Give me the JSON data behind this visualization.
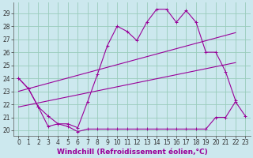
{
  "background_color": "#cce8ee",
  "grid_color": "#99ccbb",
  "line_color": "#990099",
  "xlabel": "Windchill (Refroidissement éolien,°C)",
  "xlabel_fontsize": 6.5,
  "tick_fontsize": 5.5,
  "xlim": [
    -0.5,
    23.5
  ],
  "ylim": [
    19.6,
    29.8
  ],
  "yticks": [
    20,
    21,
    22,
    23,
    24,
    25,
    26,
    27,
    28,
    29
  ],
  "xticks": [
    0,
    1,
    2,
    3,
    4,
    5,
    6,
    7,
    8,
    9,
    10,
    11,
    12,
    13,
    14,
    15,
    16,
    17,
    18,
    19,
    20,
    21,
    22,
    23
  ],
  "line1_x": [
    0,
    1,
    2,
    3,
    4,
    5,
    6,
    7,
    8,
    9,
    10,
    11,
    12,
    13,
    14,
    15,
    16,
    17,
    18,
    19,
    20,
    21,
    22,
    23
  ],
  "line1_y": [
    24.0,
    23.2,
    21.8,
    20.3,
    20.5,
    20.3,
    19.9,
    20.1,
    20.1,
    20.1,
    20.1,
    20.1,
    20.1,
    20.1,
    20.1,
    20.1,
    20.1,
    20.1,
    20.1,
    20.1,
    21.0,
    21.0,
    22.2,
    21.1
  ],
  "line2_x": [
    0,
    1,
    2,
    3,
    4,
    5,
    6,
    7,
    8,
    9,
    10,
    11,
    12,
    13,
    14,
    15,
    16,
    17,
    18,
    19,
    20,
    21,
    22
  ],
  "line2_y": [
    24.0,
    23.2,
    21.8,
    21.1,
    20.5,
    20.5,
    20.2,
    22.2,
    24.3,
    26.5,
    28.0,
    27.6,
    26.9,
    28.3,
    29.3,
    29.3,
    28.3,
    29.2,
    28.3,
    26.0,
    26.0,
    24.5,
    22.3
  ],
  "line3_x": [
    0,
    22
  ],
  "line3_y": [
    23.0,
    27.5
  ],
  "line4_x": [
    0,
    22
  ],
  "line4_y": [
    21.8,
    25.2
  ]
}
